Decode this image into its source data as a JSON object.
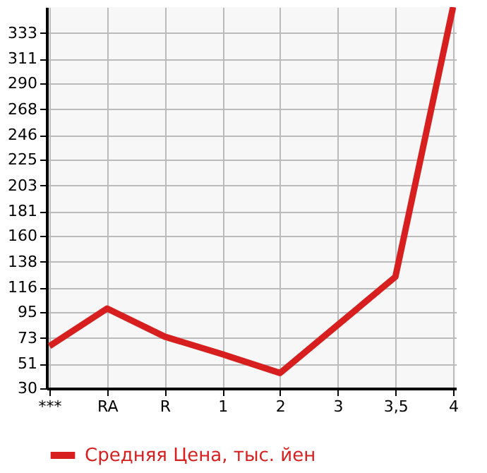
{
  "chart_data": {
    "type": "line",
    "categories": [
      "***",
      "RA",
      "R",
      "1",
      "2",
      "3",
      "3,5",
      "4"
    ],
    "series": [
      {
        "name": "Средняя Цена, тыс. йен",
        "color": "#d71f1f",
        "values": [
          66,
          98,
          74,
          59,
          43,
          84,
          125,
          355
        ]
      }
    ],
    "ylim": [
      30,
      355
    ],
    "yticks": [
      30,
      51,
      73,
      95,
      116,
      138,
      160,
      181,
      203,
      225,
      246,
      268,
      290,
      311,
      333
    ],
    "grid": true,
    "legend": "bottom",
    "marker": "none",
    "line_style": "solid"
  }
}
